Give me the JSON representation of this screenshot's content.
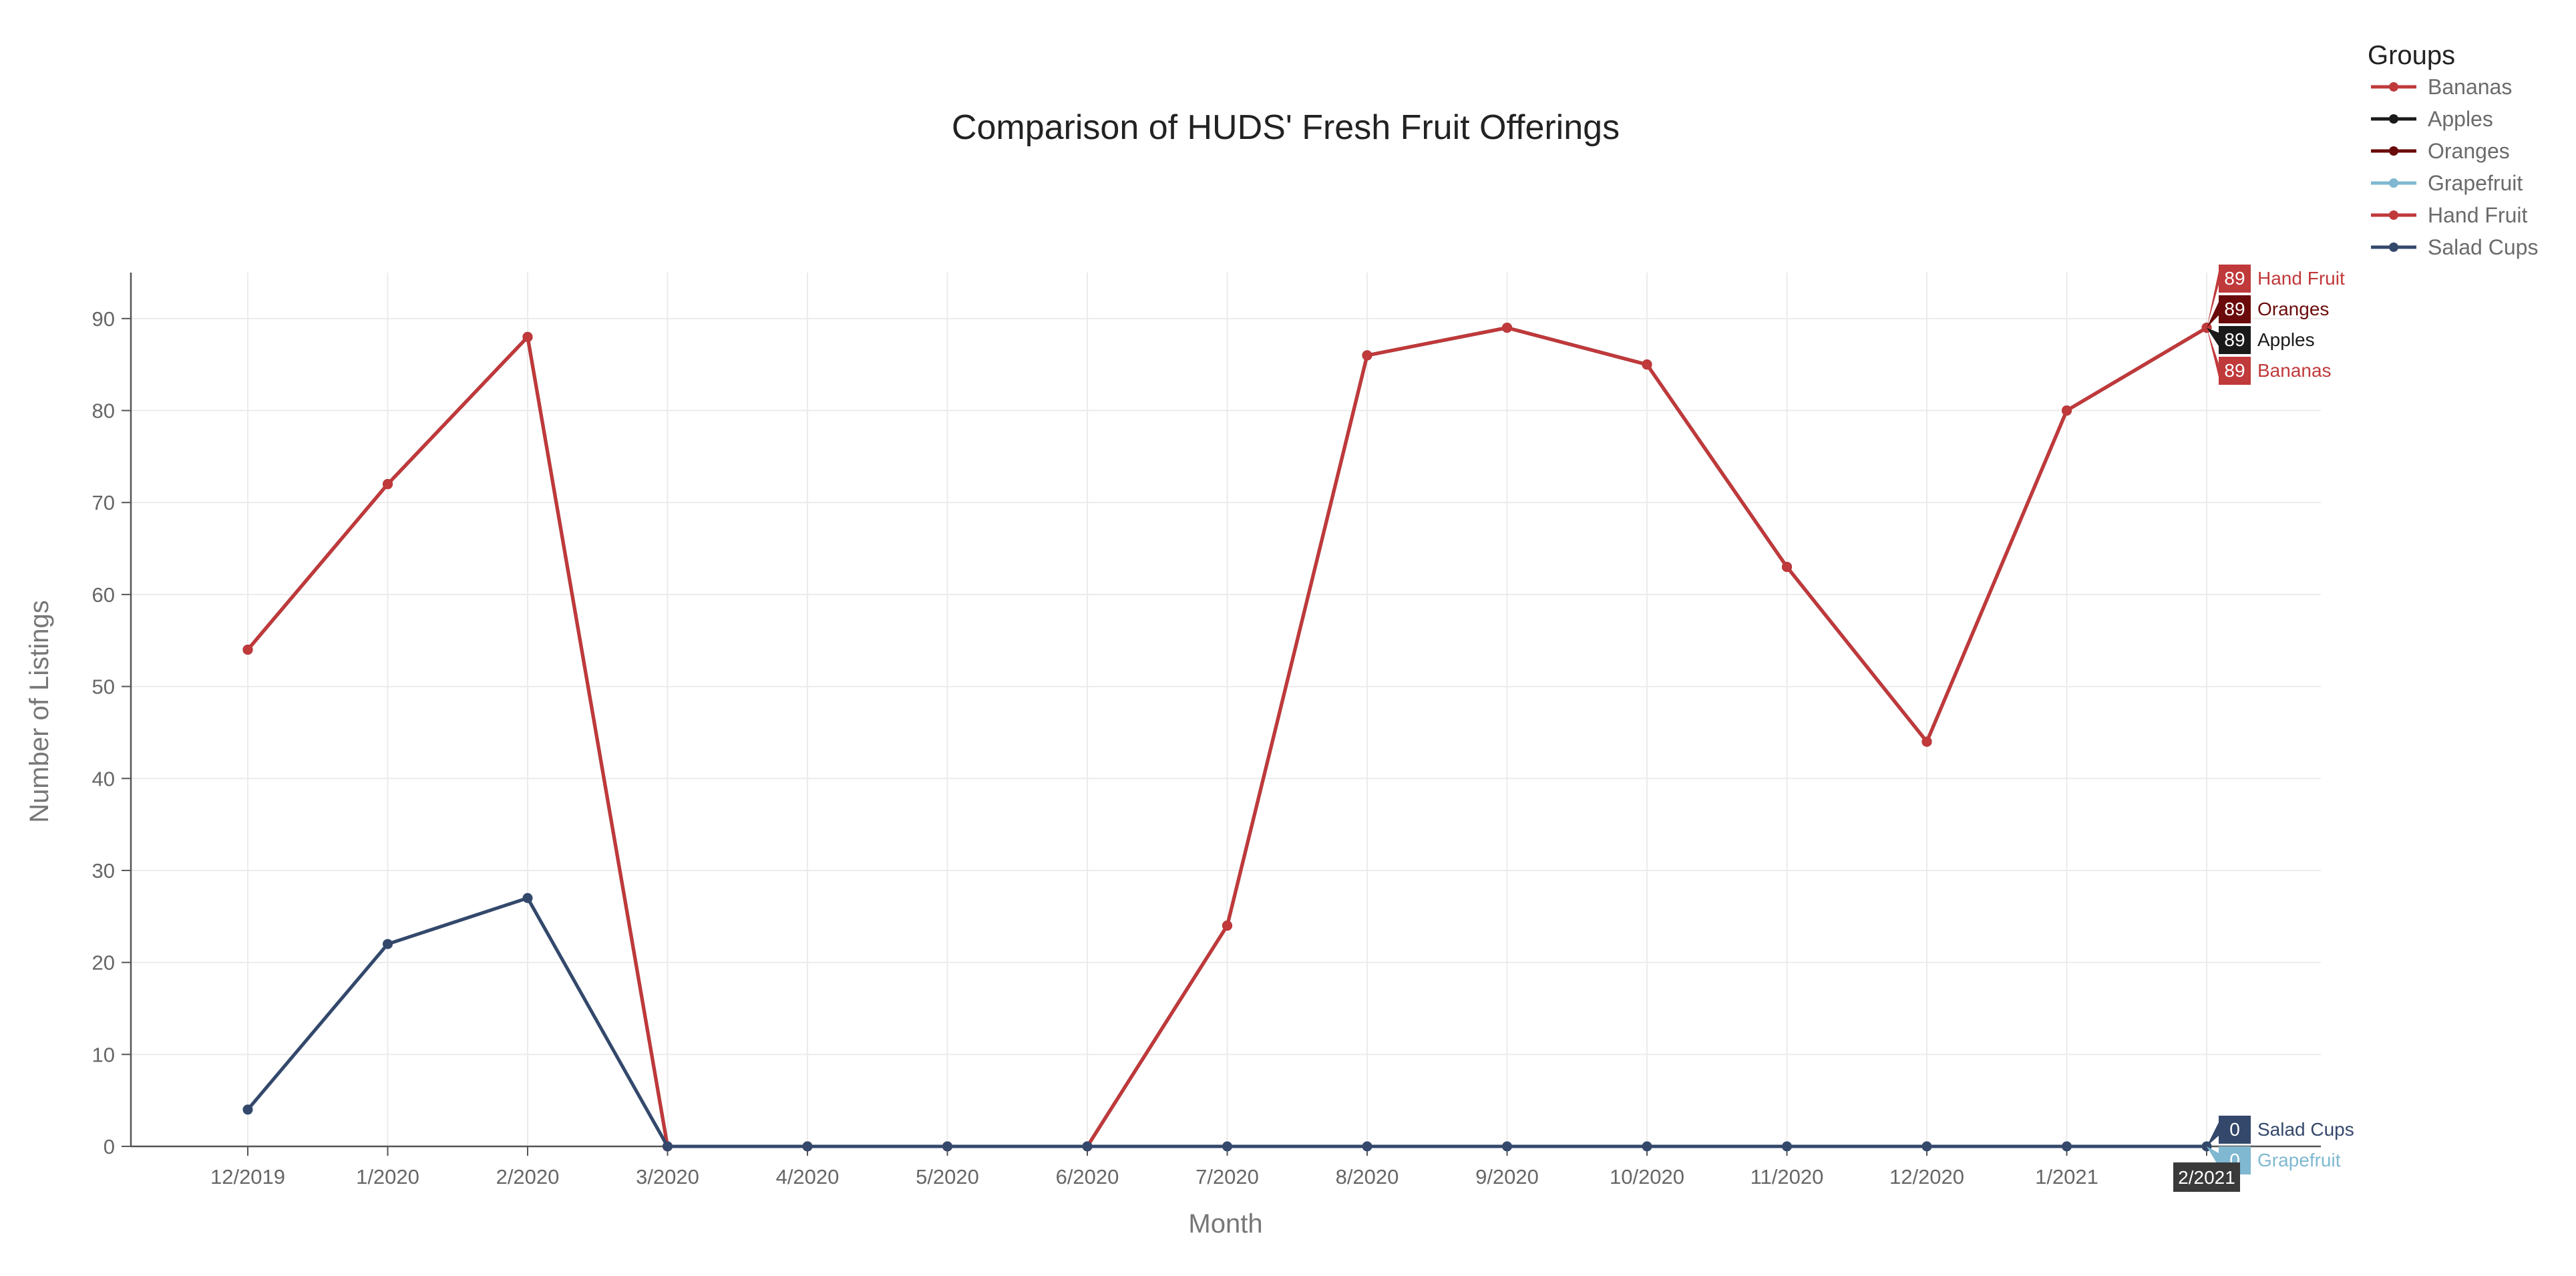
{
  "chart_data": {
    "type": "line",
    "title": "Comparison of HUDS' Fresh Fruit Offerings",
    "xlabel": "Month",
    "ylabel": "Number of Listings",
    "x": [
      "12/2019",
      "1/2020",
      "2/2020",
      "3/2020",
      "4/2020",
      "5/2020",
      "6/2020",
      "7/2020",
      "8/2020",
      "9/2020",
      "10/2020",
      "11/2020",
      "12/2020",
      "1/2021",
      "2/2021"
    ],
    "ylim": [
      0,
      95
    ],
    "yticks": [
      0,
      10,
      20,
      30,
      40,
      50,
      60,
      70,
      80,
      90
    ],
    "grid": true,
    "legend": {
      "title": "Groups",
      "placement": "top-right"
    },
    "series": [
      {
        "name": "Bananas",
        "color": "#c0393b",
        "values": [
          54,
          72,
          88,
          0,
          0,
          0,
          0,
          24,
          86,
          89,
          85,
          63,
          44,
          80,
          89
        ]
      },
      {
        "name": "Apples",
        "color": "#1a1a1a",
        "values": [
          54,
          72,
          88,
          0,
          0,
          0,
          0,
          24,
          86,
          89,
          85,
          63,
          44,
          80,
          89
        ]
      },
      {
        "name": "Oranges",
        "color": "#6b0a0a",
        "values": [
          54,
          72,
          88,
          0,
          0,
          0,
          0,
          24,
          86,
          89,
          85,
          63,
          44,
          80,
          89
        ]
      },
      {
        "name": "Grapefruit",
        "color": "#7fb8d0",
        "values": [
          4,
          22,
          27,
          0,
          0,
          0,
          0,
          0,
          0,
          0,
          0,
          0,
          0,
          0,
          0
        ]
      },
      {
        "name": "Hand Fruit",
        "color": "#c0393b",
        "values": [
          54,
          72,
          88,
          0,
          0,
          0,
          0,
          24,
          86,
          89,
          85,
          63,
          44,
          80,
          89
        ]
      },
      {
        "name": "Salad Cups",
        "color": "#34486b",
        "values": [
          4,
          22,
          27,
          0,
          0,
          0,
          0,
          0,
          0,
          0,
          0,
          0,
          0,
          0,
          0
        ]
      }
    ],
    "hover": {
      "x_label": "2/2021",
      "x_label_display": "2/2021",
      "entries": [
        {
          "series": "Hand Fruit",
          "value": "89",
          "text": "Hand Fruit"
        },
        {
          "series": "Oranges",
          "value": "89",
          "text": "Oranges"
        },
        {
          "series": "Apples",
          "value": "89",
          "text": "Apples"
        },
        {
          "series": "Bananas",
          "value": "89",
          "text": "Bananas"
        },
        {
          "series": "Salad Cups",
          "value": "0",
          "text": "Salad Cups"
        },
        {
          "series": "Grapefruit",
          "value": "0",
          "text": "Grapefruit"
        }
      ]
    }
  }
}
